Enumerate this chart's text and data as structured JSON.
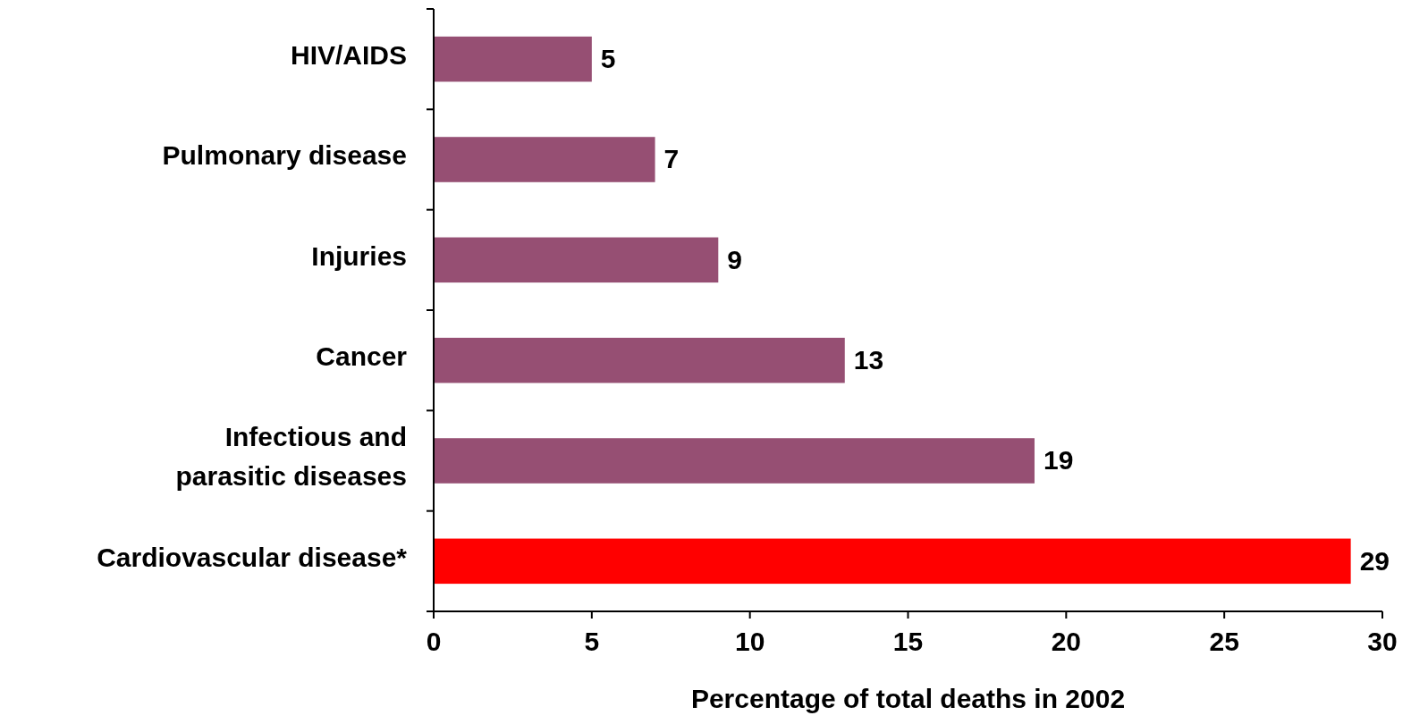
{
  "chart_data": {
    "type": "bar",
    "orientation": "horizontal",
    "xlabel": "Percentage of total deaths in 2002",
    "categories": [
      "HIV/AIDS",
      "Pulmonary disease",
      "Injuries",
      "Cancer",
      "Infectious and parasitic diseases",
      "Cardiovascular disease*"
    ],
    "values": [
      5,
      7,
      9,
      13,
      19,
      29
    ],
    "colors": [
      "#964f73",
      "#964f73",
      "#964f73",
      "#964f73",
      "#964f73",
      "#ff0000"
    ],
    "xlim": [
      0,
      30
    ],
    "xticks": [
      0,
      5,
      10,
      15,
      20,
      25,
      30
    ],
    "data_labels": true,
    "grid": false
  }
}
